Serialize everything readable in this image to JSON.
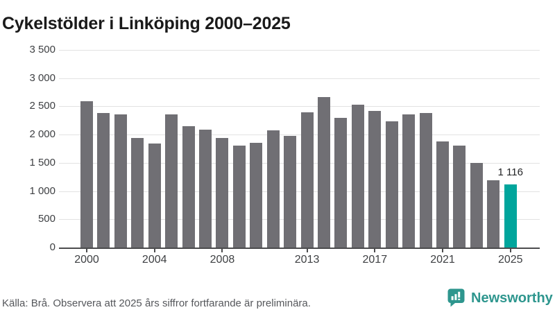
{
  "header": {
    "title": "Cykelstölder i Linköping 2000–2025"
  },
  "chart_data": {
    "type": "bar",
    "title": "Cykelstölder i Linköping 2000–2025",
    "xlabel": "",
    "ylabel": "",
    "categories": [
      2000,
      2001,
      2002,
      2003,
      2004,
      2005,
      2006,
      2007,
      2008,
      2009,
      2010,
      2011,
      2012,
      2013,
      2014,
      2015,
      2016,
      2017,
      2018,
      2019,
      2020,
      2021,
      2022,
      2023,
      2024,
      2025
    ],
    "values": [
      2590,
      2380,
      2360,
      1940,
      1840,
      2360,
      2150,
      2090,
      1940,
      1810,
      1860,
      2080,
      1980,
      2400,
      2660,
      2300,
      2530,
      2420,
      2240,
      2360,
      2380,
      1880,
      1800,
      1500,
      1190,
      1116
    ],
    "ylim": [
      0,
      3500
    ],
    "yticks": [
      0,
      500,
      1000,
      1500,
      2000,
      2500,
      3000,
      3500
    ],
    "ytick_labels": [
      "0",
      "500",
      "1 000",
      "1 500",
      "2 000",
      "2 500",
      "3 000",
      "3 500"
    ],
    "xticks": [
      2000,
      2004,
      2008,
      2013,
      2017,
      2021,
      2025
    ],
    "xtick_labels": [
      "2000",
      "2004",
      "2008",
      "2013",
      "2017",
      "2021",
      "2025"
    ],
    "grid": "horizontal",
    "legend": "none",
    "bar_color": "#706f74",
    "highlight": {
      "year": 2025,
      "value": 1116,
      "label": "1 116",
      "color": "#00a59c"
    }
  },
  "footer": {
    "source": "Källa: Brå. Observera att 2025 års siffror fortfarande är preliminära.",
    "brand": "Newsworthy",
    "brand_color": "#2e968e"
  },
  "icons": {
    "brand_logo": "newsworthy-speech-bubble-bar-chart-icon"
  }
}
